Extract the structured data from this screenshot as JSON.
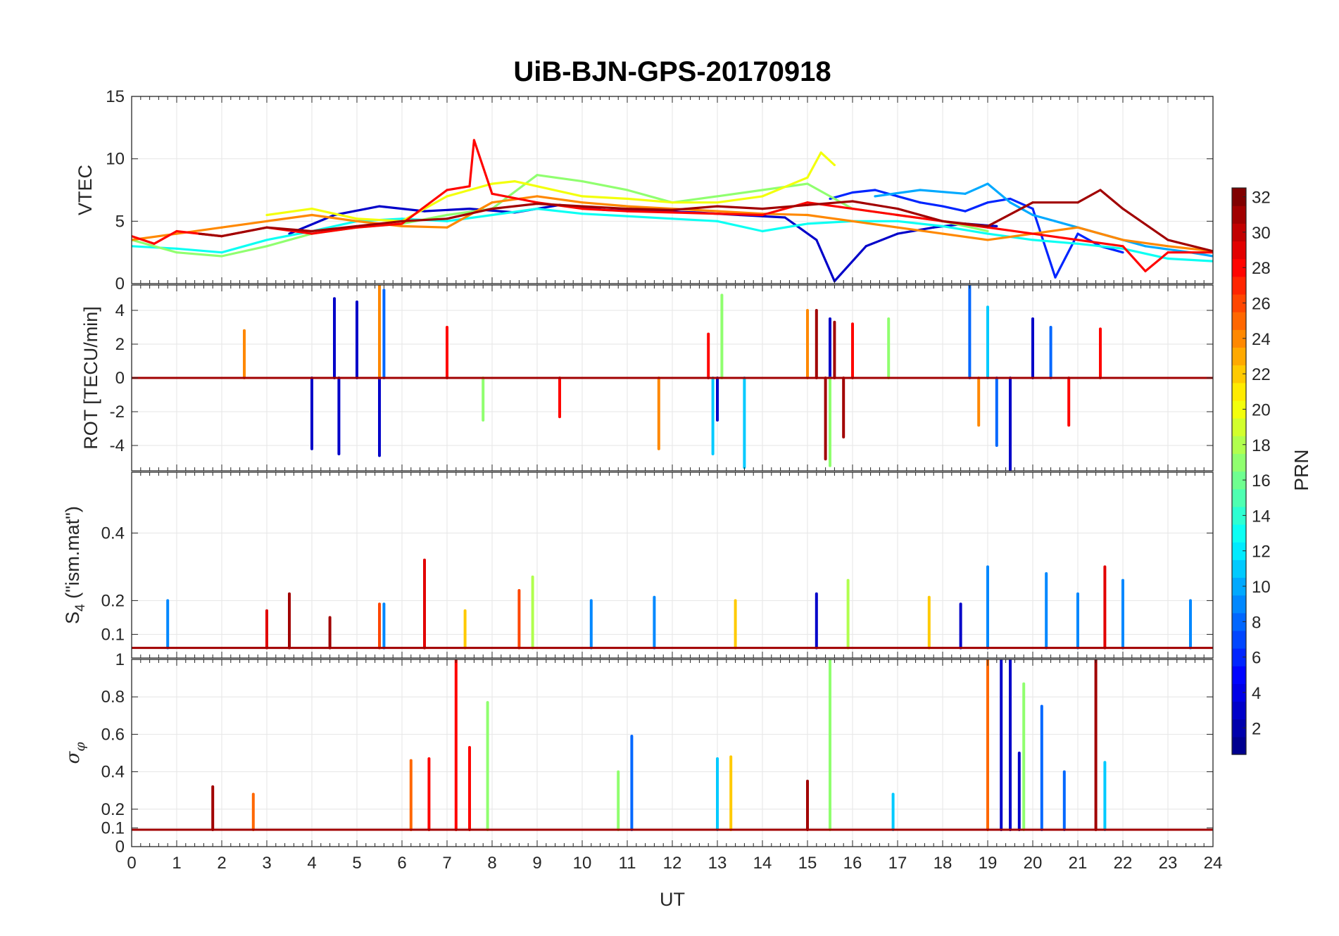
{
  "chart_data": {
    "type": "line",
    "title": "UiB-BJN-GPS-20170918",
    "xlabel": "UT",
    "xlim": [
      0,
      24
    ],
    "xticks": [
      0,
      1,
      2,
      3,
      4,
      5,
      6,
      7,
      8,
      9,
      10,
      11,
      12,
      13,
      14,
      15,
      16,
      17,
      18,
      19,
      20,
      21,
      22,
      23,
      24
    ],
    "colorbar": {
      "label": "PRN",
      "range": [
        1,
        32
      ],
      "ticks": [
        2,
        4,
        6,
        8,
        10,
        12,
        14,
        16,
        18,
        20,
        22,
        24,
        26,
        28,
        30,
        32
      ],
      "colormap": [
        "#00008f",
        "#0000ff",
        "#0080ff",
        "#00ffff",
        "#80ff80",
        "#ffff00",
        "#ff8000",
        "#ff0000",
        "#800000"
      ]
    },
    "panels": [
      {
        "id": "vtec",
        "ylabel": "VTEC",
        "ylim": [
          0,
          15
        ],
        "yticks": [
          0,
          5,
          10,
          15
        ],
        "series": [
          {
            "prn": 3,
            "x": [
              3.5,
              4.5,
              5.5,
              6.5,
              7.5,
              8.5,
              9.5,
              10.5,
              11.5,
              12.5,
              13.5,
              14.5,
              15.2,
              15.6,
              16.3,
              17.0,
              17.8,
              18.5,
              19.2
            ],
            "y": [
              4.0,
              5.5,
              6.2,
              5.8,
              6.0,
              5.7,
              6.3,
              5.9,
              5.8,
              5.7,
              5.5,
              5.3,
              3.5,
              0.2,
              3.0,
              4.0,
              4.5,
              4.8,
              4.6
            ]
          },
          {
            "prn": 6,
            "x": [
              15.5,
              16.0,
              16.5,
              17.0,
              17.5,
              18.0,
              18.5,
              19.0,
              19.5,
              20.0,
              20.5,
              21.0,
              21.5,
              22.0
            ],
            "y": [
              6.8,
              7.3,
              7.5,
              7.0,
              6.5,
              6.2,
              5.8,
              6.5,
              6.8,
              6.0,
              0.5,
              4.0,
              3.0,
              2.5
            ]
          },
          {
            "prn": 10,
            "x": [
              16.5,
              17.5,
              18.5,
              19.0,
              19.5,
              20.0,
              20.5,
              21.0,
              21.5,
              22.5,
              23.5,
              24.0
            ],
            "y": [
              7.0,
              7.5,
              7.2,
              8.0,
              6.5,
              5.5,
              5.0,
              4.5,
              4.0,
              3.0,
              2.5,
              2.2
            ]
          },
          {
            "prn": 13,
            "x": [
              0,
              1,
              2,
              3,
              4,
              5,
              6,
              7,
              8,
              9,
              10,
              11,
              12,
              13,
              14,
              15,
              16,
              17,
              18,
              19,
              20,
              21,
              22,
              23,
              24
            ],
            "y": [
              3.0,
              2.8,
              2.5,
              3.5,
              4.2,
              5.0,
              5.2,
              5.0,
              5.5,
              6.0,
              5.6,
              5.4,
              5.2,
              5.0,
              4.2,
              4.8,
              5.0,
              5.0,
              4.6,
              4.0,
              3.5,
              3.2,
              2.8,
              2.0,
              1.8
            ]
          },
          {
            "prn": 17,
            "x": [
              0,
              1,
              2,
              3,
              4,
              5,
              6,
              7,
              8,
              9,
              10,
              11,
              12,
              13,
              14,
              15,
              16,
              17,
              18,
              19
            ],
            "y": [
              3.5,
              2.5,
              2.2,
              3.0,
              4.0,
              4.5,
              4.8,
              5.5,
              6.0,
              8.7,
              8.2,
              7.5,
              6.5,
              7.0,
              7.5,
              8.0,
              6.0,
              5.5,
              5.0,
              4.2
            ]
          },
          {
            "prn": 20,
            "x": [
              3,
              4,
              5,
              6,
              7,
              7.5,
              8,
              8.5,
              9,
              10,
              11,
              12,
              13,
              14,
              15,
              15.3,
              15.6
            ],
            "y": [
              5.5,
              6.0,
              5.2,
              5.0,
              7.0,
              7.5,
              8.0,
              8.2,
              7.8,
              7.0,
              6.8,
              6.5,
              6.5,
              7.0,
              8.5,
              10.5,
              9.5
            ]
          },
          {
            "prn": 24,
            "x": [
              0,
              1,
              2,
              3,
              4,
              5,
              6,
              7,
              8,
              9,
              10,
              11,
              12,
              13,
              14,
              15,
              16,
              17,
              18,
              19,
              20,
              21,
              22,
              23,
              24
            ],
            "y": [
              3.5,
              4.0,
              4.5,
              5.0,
              5.5,
              5.0,
              4.6,
              4.5,
              6.5,
              7.0,
              6.5,
              6.2,
              6.0,
              5.8,
              5.6,
              5.5,
              5.0,
              4.5,
              4.0,
              3.5,
              4.0,
              4.5,
              3.5,
              3.0,
              2.6
            ]
          },
          {
            "prn": 28,
            "x": [
              0,
              0.5,
              1,
              2,
              3,
              4,
              5,
              6,
              7,
              7.5,
              7.6,
              8,
              9,
              10,
              11,
              12,
              13,
              14,
              15,
              16,
              17,
              18,
              19,
              20,
              21,
              22,
              22.5,
              23,
              24
            ],
            "y": [
              3.8,
              3.2,
              4.2,
              3.8,
              4.5,
              4.0,
              4.5,
              4.8,
              7.5,
              7.8,
              11.5,
              7.2,
              6.5,
              6.0,
              5.8,
              5.7,
              5.6,
              5.5,
              6.5,
              6.0,
              5.5,
              5.0,
              4.5,
              4.0,
              3.5,
              3.0,
              1.0,
              2.5,
              2.5
            ]
          },
          {
            "prn": 31,
            "x": [
              1.5,
              2,
              3,
              4,
              5,
              6,
              7,
              8,
              9,
              10,
              11,
              12,
              13,
              14,
              15,
              16,
              17,
              18,
              19,
              20,
              21,
              21.5,
              22,
              23,
              24
            ],
            "y": [
              4.0,
              3.8,
              4.5,
              4.2,
              4.6,
              5.0,
              5.2,
              6.0,
              6.4,
              6.2,
              6.0,
              5.9,
              6.2,
              6.0,
              6.3,
              6.6,
              6.0,
              5.0,
              4.6,
              6.5,
              6.5,
              7.5,
              6.0,
              3.5,
              2.6
            ]
          }
        ]
      },
      {
        "id": "rot",
        "ylabel": "ROT [TECU/min]",
        "ylim": [
          -5.5,
          5.5
        ],
        "yticks": [
          -4,
          -2,
          0,
          2,
          4
        ],
        "series": [
          {
            "prn": 3,
            "x": [
              4.0,
              4.5,
              4.6,
              5.0,
              5.5,
              13.0,
              15.5,
              19.5,
              20.0
            ],
            "y": [
              -4.2,
              4.7,
              -4.5,
              4.5,
              -4.6,
              -2.5,
              3.5,
              -5.5,
              3.5
            ]
          },
          {
            "prn": 8,
            "x": [
              5.6,
              18.6,
              19.2,
              20.4
            ],
            "y": [
              5.2,
              5.5,
              -4.0,
              3.0
            ]
          },
          {
            "prn": 11,
            "x": [
              13.6,
              19.0,
              12.9
            ],
            "y": [
              -5.3,
              4.2,
              -4.5
            ]
          },
          {
            "prn": 17,
            "x": [
              13.1,
              15.5,
              16.8,
              7.8
            ],
            "y": [
              4.9,
              -5.2,
              3.5,
              -2.5
            ]
          },
          {
            "prn": 24,
            "x": [
              2.5,
              5.5,
              11.7,
              15.0,
              18.8
            ],
            "y": [
              2.8,
              5.5,
              -4.2,
              4.0,
              -2.8
            ]
          },
          {
            "prn": 28,
            "x": [
              7.0,
              9.5,
              12.8,
              16.0,
              20.8,
              21.5
            ],
            "y": [
              3.0,
              -2.3,
              2.6,
              3.2,
              -2.8,
              2.9
            ]
          },
          {
            "prn": 31,
            "x": [
              15.2,
              15.4,
              15.6,
              15.8
            ],
            "y": [
              4.0,
              -4.8,
              3.3,
              -3.5
            ]
          }
        ]
      },
      {
        "id": "s4",
        "ylabel": "S4 (\"ism.mat\")",
        "ylim": [
          0.03,
          0.58
        ],
        "yticks": [
          0.1,
          0.2,
          0.4
        ],
        "series": [
          {
            "prn": 3,
            "x": [
              15.2,
              18.4
            ],
            "y": [
              0.22,
              0.19
            ]
          },
          {
            "prn": 9,
            "x": [
              0.8,
              5.6,
              10.2,
              11.6,
              19.0,
              20.3,
              21.0,
              22.0,
              23.5
            ],
            "y": [
              0.2,
              0.19,
              0.2,
              0.21,
              0.3,
              0.28,
              0.22,
              0.26,
              0.2
            ]
          },
          {
            "prn": 18,
            "x": [
              15.9,
              8.9
            ],
            "y": [
              0.26,
              0.27
            ]
          },
          {
            "prn": 22,
            "x": [
              7.4,
              13.4,
              17.7
            ],
            "y": [
              0.17,
              0.2,
              0.21
            ]
          },
          {
            "prn": 26,
            "x": [
              8.6,
              5.5
            ],
            "y": [
              0.23,
              0.19
            ]
          },
          {
            "prn": 29,
            "x": [
              6.5,
              21.6,
              3.0
            ],
            "y": [
              0.32,
              0.3,
              0.17
            ]
          },
          {
            "prn": 31,
            "x": [
              3.5,
              4.4
            ],
            "y": [
              0.22,
              0.15
            ]
          }
        ]
      },
      {
        "id": "sigma",
        "ylabel": "σφ",
        "ylim": [
          0,
          1
        ],
        "yticks": [
          0,
          0.1,
          0.2,
          0.4,
          0.6,
          0.8,
          1
        ],
        "series": [
          {
            "prn": 3,
            "x": [
              19.3,
              19.5,
              19.7
            ],
            "y": [
              1.0,
              1.0,
              0.5
            ]
          },
          {
            "prn": 8,
            "x": [
              11.1,
              20.2,
              20.7
            ],
            "y": [
              0.59,
              0.75,
              0.4
            ]
          },
          {
            "prn": 11,
            "x": [
              13.0,
              16.9,
              21.6
            ],
            "y": [
              0.47,
              0.28,
              0.45
            ]
          },
          {
            "prn": 17,
            "x": [
              7.9,
              15.5,
              19.8,
              10.8
            ],
            "y": [
              0.77,
              1.0,
              0.87,
              0.4
            ]
          },
          {
            "prn": 22,
            "x": [
              13.3
            ],
            "y": [
              0.48
            ]
          },
          {
            "prn": 25,
            "x": [
              6.2,
              19.0,
              2.7
            ],
            "y": [
              0.46,
              1.0,
              0.28
            ]
          },
          {
            "prn": 28,
            "x": [
              7.2,
              6.6,
              7.5
            ],
            "y": [
              1.0,
              0.47,
              0.53
            ]
          },
          {
            "prn": 31,
            "x": [
              21.4,
              15.0,
              1.8
            ],
            "y": [
              1.0,
              0.35,
              0.32
            ]
          }
        ]
      }
    ]
  }
}
